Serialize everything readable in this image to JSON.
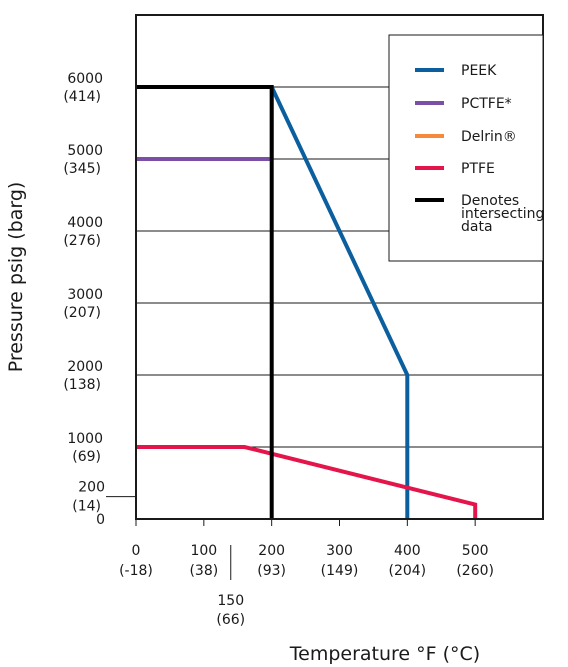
{
  "chart_data": {
    "type": "line",
    "xlabel": "Temperature °F (°C)",
    "ylabel": "Pressure psig (barg)",
    "xlim": [
      0,
      600
    ],
    "ylim": [
      0,
      7000
    ],
    "x_ticks": [
      {
        "value": 0,
        "label": "0",
        "sub": "(-18)"
      },
      {
        "value": 100,
        "label": "100",
        "sub": "(38)"
      },
      {
        "value": 200,
        "label": "200",
        "sub": "(93)"
      },
      {
        "value": 300,
        "label": "300",
        "sub": "(149)"
      },
      {
        "value": 400,
        "label": "400",
        "sub": "(204)"
      },
      {
        "value": 500,
        "label": "500",
        "sub": "(260)"
      }
    ],
    "x_extra_tick": {
      "value": 150,
      "label": "150",
      "sub": "(66)"
    },
    "y_ticks": [
      {
        "value": 0,
        "label": "0",
        "sub": ""
      },
      {
        "value": 1000,
        "label": "1000",
        "sub": "(69)"
      },
      {
        "value": 2000,
        "label": "2000",
        "sub": "(138)"
      },
      {
        "value": 3000,
        "label": "3000",
        "sub": "(207)"
      },
      {
        "value": 4000,
        "label": "4000",
        "sub": "(276)"
      },
      {
        "value": 5000,
        "label": "5000",
        "sub": "(345)"
      },
      {
        "value": 6000,
        "label": "6000",
        "sub": "(414)"
      }
    ],
    "y_extra_tick": {
      "value": 200,
      "label": "200",
      "sub": "(14)"
    },
    "grid": "horizontal",
    "legend_position": "top-right",
    "series": [
      {
        "name": "PEEK",
        "color": "#0b5f9e",
        "x": [
          200,
          400,
          400
        ],
        "y": [
          6000,
          2000,
          0
        ]
      },
      {
        "name": "PCTFE*",
        "color": "#7b4fa6",
        "x": [
          0,
          200
        ],
        "y": [
          5000,
          5000
        ]
      },
      {
        "name": "Delrin®",
        "color": "#f58a3c",
        "x": [
          200,
          200
        ],
        "y": [
          6000,
          5000
        ]
      },
      {
        "name": "PTFE",
        "color": "#e4154b",
        "x": [
          0,
          160,
          500,
          500
        ],
        "y": [
          1000,
          1000,
          200,
          0
        ]
      },
      {
        "name": "Denotes intersecting data",
        "color": "#000000",
        "x": [
          0,
          200,
          200
        ],
        "y": [
          6000,
          6000,
          0
        ]
      }
    ]
  }
}
